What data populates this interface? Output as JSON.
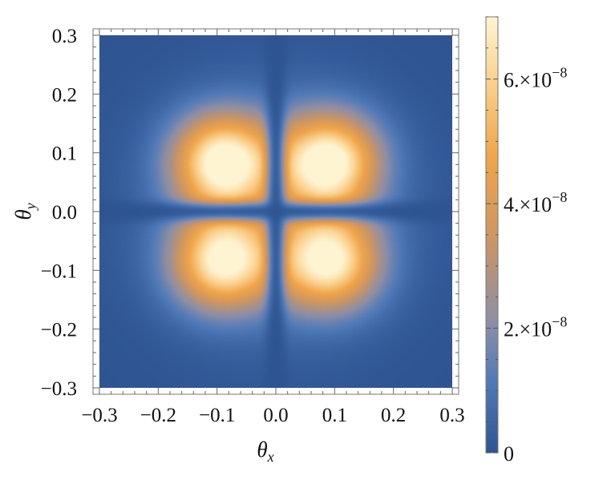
{
  "chart_data": {
    "type": "heatmap",
    "title": "",
    "xlabel": "θx",
    "ylabel": "θy",
    "x_range": [
      -0.3,
      0.3
    ],
    "y_range": [
      -0.3,
      0.3
    ],
    "x_ticks": [
      "−0.3",
      "−0.2",
      "−0.1",
      "0.0",
      "0.1",
      "0.2",
      "0.3"
    ],
    "y_ticks": [
      "0.3",
      "0.2",
      "0.1",
      "0.0",
      "−0.1",
      "−0.2",
      "−0.3"
    ],
    "x_tick_values": [
      -0.3,
      -0.2,
      -0.1,
      0.0,
      0.1,
      0.2,
      0.3
    ],
    "y_tick_values": [
      0.3,
      0.2,
      0.1,
      0.0,
      -0.1,
      -0.2,
      -0.3
    ],
    "colorbar": {
      "range": [
        0,
        7e-08
      ],
      "ticks": [
        {
          "value": 0,
          "label": "0"
        },
        {
          "value": 2e-08,
          "label": "2.×10",
          "exp": "−8"
        },
        {
          "value": 4e-08,
          "label": "4.×10",
          "exp": "−8"
        },
        {
          "value": 6e-08,
          "label": "6.×10",
          "exp": "−8"
        }
      ],
      "colors": [
        "#2e5592",
        "#5079b8",
        "#8d8ea6",
        "#cf9660",
        "#f0a54a",
        "#fbd08d",
        "#fff4d2"
      ]
    },
    "peaks": [
      {
        "x": -0.09,
        "y": 0.085,
        "value": 6.8e-08
      },
      {
        "x": 0.09,
        "y": 0.085,
        "value": 6.8e-08
      },
      {
        "x": -0.09,
        "y": -0.085,
        "value": 6.4e-08
      },
      {
        "x": 0.09,
        "y": -0.085,
        "value": 6.4e-08
      }
    ],
    "grid": false
  }
}
